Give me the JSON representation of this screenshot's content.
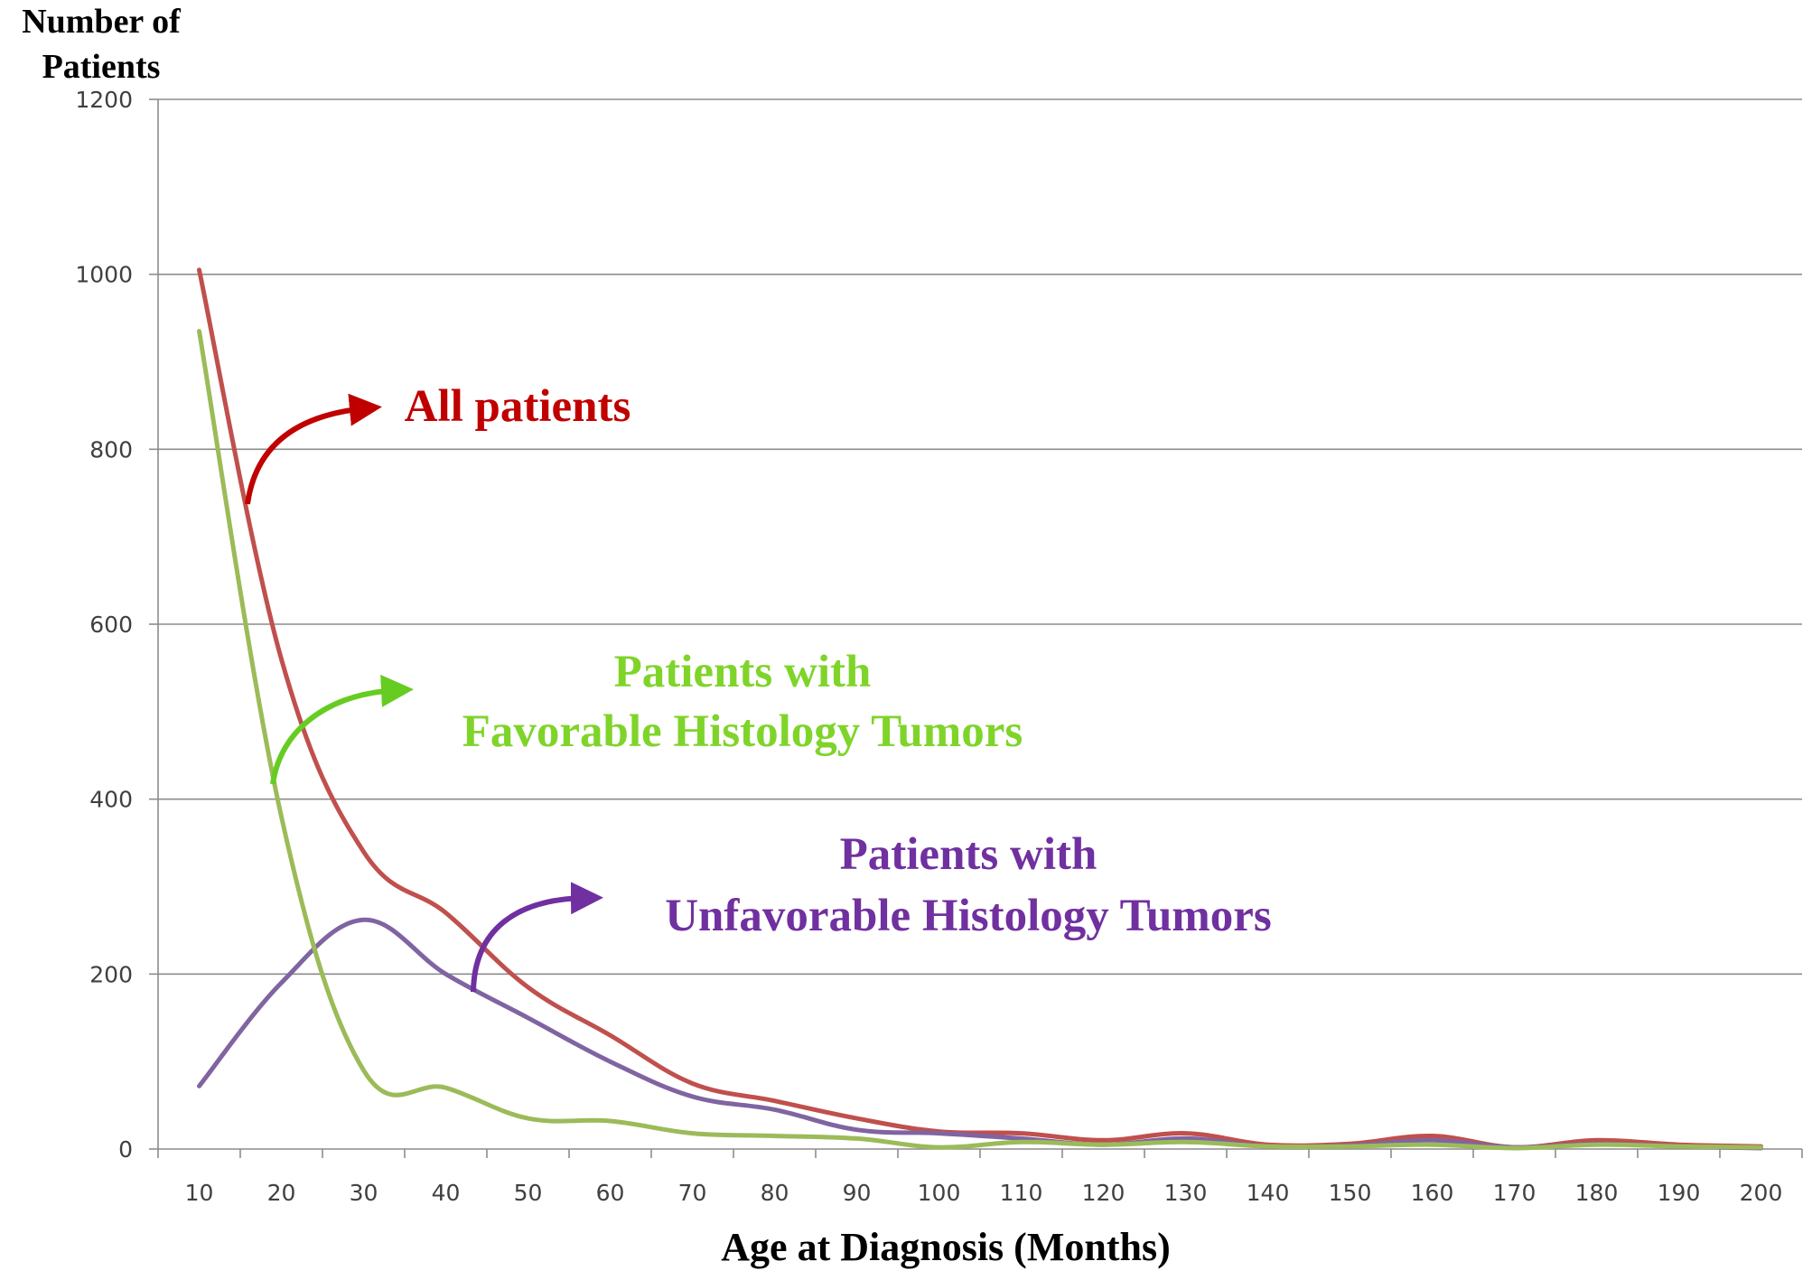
{
  "chart_data": {
    "type": "line",
    "ylabel_lines": [
      "Number of",
      "Patients"
    ],
    "xlabel": "Age at Diagnosis (Months)",
    "x": [
      10,
      20,
      30,
      40,
      50,
      60,
      70,
      80,
      90,
      100,
      110,
      120,
      130,
      140,
      150,
      160,
      170,
      180,
      190,
      200
    ],
    "xticks": [
      "10",
      "20",
      "30",
      "40",
      "50",
      "60",
      "70",
      "80",
      "90",
      "100",
      "110",
      "120",
      "130",
      "140",
      "150",
      "160",
      "170",
      "180",
      "190",
      "200"
    ],
    "yticks": [
      "0",
      "200",
      "400",
      "600",
      "800",
      "1000",
      "1200"
    ],
    "ylim": [
      0,
      1200
    ],
    "grid": true,
    "series": [
      {
        "name": "All patients",
        "color": "#c0504d",
        "values": [
          1005,
          560,
          340,
          270,
          185,
          130,
          75,
          55,
          35,
          20,
          18,
          10,
          18,
          5,
          6,
          15,
          2,
          10,
          5,
          3
        ]
      },
      {
        "name": "Patients with Favorable Histology Tumors",
        "color": "#9bbb59",
        "values": [
          935,
          380,
          90,
          70,
          35,
          32,
          18,
          15,
          12,
          2,
          8,
          5,
          8,
          3,
          3,
          5,
          1,
          5,
          3,
          2
        ]
      },
      {
        "name": "Patients with Unfavorable Histology Tumors",
        "color": "#8064a2",
        "values": [
          72,
          190,
          262,
          200,
          150,
          100,
          60,
          45,
          22,
          18,
          12,
          5,
          12,
          3,
          4,
          10,
          2,
          6,
          3,
          1
        ]
      }
    ],
    "annotations": [
      {
        "series": 0,
        "lines": [
          "All patients"
        ],
        "color": "#c00000",
        "arrow_color": "#c00000"
      },
      {
        "series": 1,
        "lines": [
          "Patients with",
          "Favorable Histology Tumors"
        ],
        "color": "#7fd42a",
        "arrow_color": "#66cc22"
      },
      {
        "series": 2,
        "lines": [
          "Patients with",
          "Unfavorable Histology Tumors"
        ],
        "color": "#7030a0",
        "arrow_color": "#7030a0"
      }
    ]
  }
}
